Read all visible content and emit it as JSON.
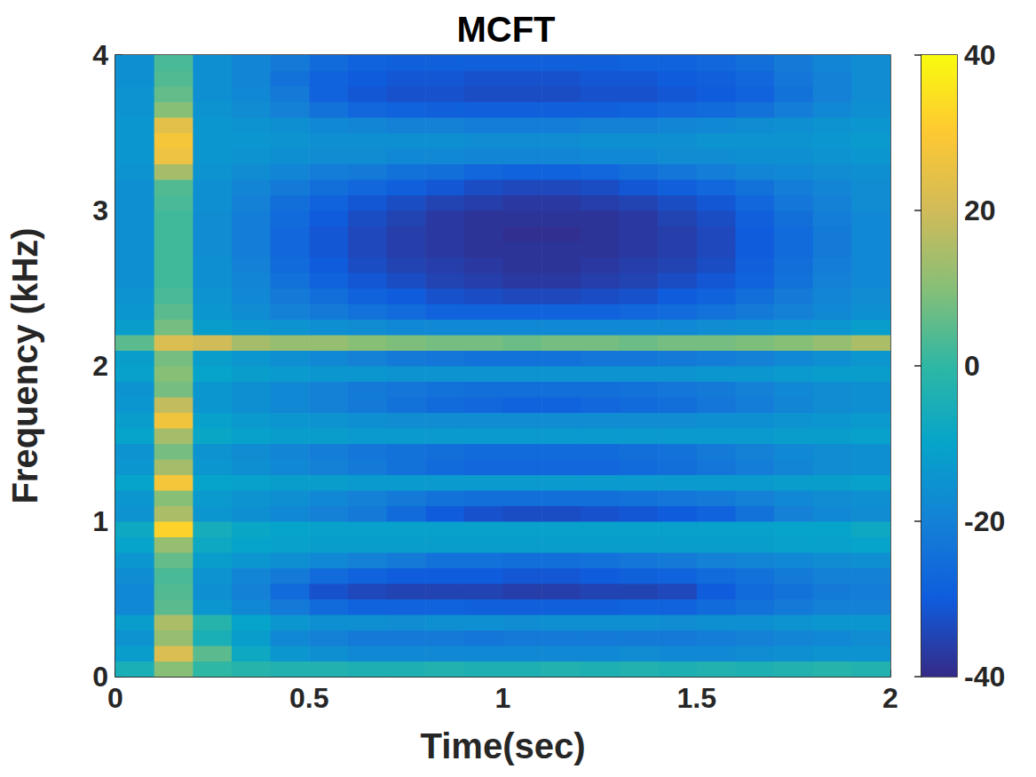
{
  "chart_data": {
    "type": "heatmap",
    "title": "MCFT",
    "x_label": "Time(sec)",
    "y_label": "Frequency (kHz)",
    "xlim": [
      0,
      2
    ],
    "xticks": [
      0,
      0.5,
      1,
      1.5,
      2
    ],
    "ylim": [
      0,
      4
    ],
    "yticks": [
      0,
      1,
      2,
      3,
      4
    ],
    "x": [
      0.05,
      0.15,
      0.25,
      0.35,
      0.45,
      0.55,
      0.65,
      0.75,
      0.85,
      0.95,
      1.05,
      1.15,
      1.25,
      1.35,
      1.45,
      1.55,
      1.65,
      1.75,
      1.85,
      1.95
    ],
    "y": [
      0.05,
      0.15,
      0.25,
      0.35,
      0.45,
      0.55,
      0.65,
      0.75,
      0.85,
      0.95,
      1.05,
      1.15,
      1.25,
      1.35,
      1.45,
      1.55,
      1.65,
      1.75,
      1.85,
      1.95,
      2.05,
      2.15,
      2.25,
      2.35,
      2.45,
      2.55,
      2.65,
      2.75,
      2.85,
      2.95,
      3.05,
      3.15,
      3.25,
      3.35,
      3.45,
      3.55,
      3.65,
      3.75,
      3.85,
      3.95
    ],
    "values": [
      [
        -5,
        10,
        0,
        -2,
        -3,
        -3,
        -4,
        -4,
        -3,
        -4,
        -4,
        -3,
        -4,
        -3,
        -4,
        -3,
        -4,
        -3,
        -2,
        -3
      ],
      [
        -12,
        22,
        5,
        -8,
        -14,
        -16,
        -18,
        -18,
        -18,
        -18,
        -18,
        -18,
        -18,
        -17,
        -18,
        -18,
        -17,
        -16,
        -15,
        -15
      ],
      [
        -15,
        12,
        -5,
        -12,
        -18,
        -20,
        -22,
        -22,
        -22,
        -23,
        -22,
        -22,
        -22,
        -22,
        -22,
        -21,
        -20,
        -19,
        -18,
        -17
      ],
      [
        -12,
        15,
        -2,
        -10,
        -14,
        -16,
        -16,
        -17,
        -16,
        -16,
        -17,
        -16,
        -16,
        -16,
        -17,
        -16,
        -16,
        -15,
        -14,
        -14
      ],
      [
        -18,
        5,
        -14,
        -18,
        -22,
        -26,
        -28,
        -28,
        -28,
        -29,
        -29,
        -29,
        -29,
        -28,
        -28,
        -26,
        -24,
        -22,
        -20,
        -20
      ],
      [
        -18,
        4,
        -16,
        -20,
        -26,
        -32,
        -34,
        -35,
        -35,
        -35,
        -36,
        -36,
        -35,
        -35,
        -34,
        -30,
        -26,
        -24,
        -22,
        -21
      ],
      [
        -17,
        3,
        -15,
        -19,
        -22,
        -26,
        -28,
        -30,
        -30,
        -30,
        -31,
        -31,
        -30,
        -29,
        -28,
        -26,
        -24,
        -22,
        -20,
        -20
      ],
      [
        -14,
        6,
        -12,
        -14,
        -16,
        -18,
        -20,
        -22,
        -24,
        -24,
        -25,
        -25,
        -24,
        -23,
        -22,
        -20,
        -19,
        -18,
        -17,
        -16
      ],
      [
        -10,
        12,
        -8,
        -10,
        -11,
        -12,
        -12,
        -12,
        -12,
        -12,
        -12,
        -12,
        -12,
        -12,
        -12,
        -12,
        -12,
        -11,
        -11,
        -10
      ],
      [
        -8,
        32,
        -6,
        -9,
        -10,
        -11,
        -11,
        -11,
        -11,
        -11,
        -11,
        -11,
        -11,
        -11,
        -11,
        -11,
        -11,
        -10,
        -10,
        -8
      ],
      [
        -15,
        15,
        -14,
        -16,
        -18,
        -20,
        -22,
        -26,
        -30,
        -32,
        -33,
        -33,
        -32,
        -31,
        -30,
        -28,
        -24,
        -20,
        -18,
        -17
      ],
      [
        -14,
        10,
        -13,
        -15,
        -16,
        -18,
        -20,
        -22,
        -24,
        -25,
        -25,
        -25,
        -25,
        -24,
        -23,
        -22,
        -20,
        -18,
        -17,
        -16
      ],
      [
        -10,
        28,
        -10,
        -11,
        -12,
        -12,
        -13,
        -13,
        -13,
        -13,
        -13,
        -13,
        -13,
        -13,
        -13,
        -13,
        -13,
        -12,
        -12,
        -11
      ],
      [
        -14,
        14,
        -14,
        -16,
        -18,
        -20,
        -22,
        -24,
        -26,
        -27,
        -27,
        -27,
        -27,
        -26,
        -25,
        -23,
        -21,
        -19,
        -17,
        -16
      ],
      [
        -15,
        8,
        -15,
        -17,
        -19,
        -21,
        -23,
        -24,
        -25,
        -26,
        -26,
        -26,
        -26,
        -25,
        -24,
        -22,
        -20,
        -18,
        -17,
        -16
      ],
      [
        -10,
        14,
        -9,
        -11,
        -12,
        -12,
        -13,
        -13,
        -13,
        -13,
        -13,
        -13,
        -13,
        -13,
        -13,
        -13,
        -13,
        -12,
        -12,
        -11
      ],
      [
        -12,
        27,
        -11,
        -13,
        -14,
        -15,
        -16,
        -17,
        -17,
        -17,
        -17,
        -17,
        -17,
        -17,
        -17,
        -16,
        -16,
        -15,
        -14,
        -13
      ],
      [
        -14,
        18,
        -14,
        -16,
        -18,
        -20,
        -22,
        -24,
        -26,
        -27,
        -28,
        -28,
        -27,
        -26,
        -25,
        -23,
        -21,
        -19,
        -17,
        -16
      ],
      [
        -15,
        8,
        -14,
        -16,
        -18,
        -20,
        -22,
        -23,
        -24,
        -25,
        -25,
        -25,
        -25,
        -24,
        -23,
        -22,
        -20,
        -18,
        -17,
        -16
      ],
      [
        -11,
        10,
        -10,
        -12,
        -13,
        -14,
        -14,
        -15,
        -15,
        -15,
        -15,
        -15,
        -15,
        -15,
        -15,
        -14,
        -14,
        -13,
        -12,
        -12
      ],
      [
        -12,
        8,
        -12,
        -14,
        -16,
        -18,
        -20,
        -22,
        -23,
        -24,
        -24,
        -24,
        -23,
        -23,
        -22,
        -21,
        -20,
        -18,
        -16,
        -14
      ],
      [
        5,
        22,
        20,
        14,
        12,
        12,
        10,
        9,
        8,
        8,
        7,
        8,
        8,
        7,
        8,
        8,
        9,
        10,
        12,
        15
      ],
      [
        -12,
        8,
        -12,
        -14,
        -15,
        -16,
        -17,
        -18,
        -18,
        -18,
        -18,
        -18,
        -18,
        -18,
        -18,
        -17,
        -16,
        -15,
        -14,
        -12
      ],
      [
        -14,
        5,
        -14,
        -17,
        -20,
        -22,
        -24,
        -26,
        -28,
        -28,
        -28,
        -28,
        -28,
        -27,
        -26,
        -24,
        -22,
        -20,
        -18,
        -16
      ],
      [
        -15,
        3,
        -15,
        -18,
        -22,
        -25,
        -28,
        -30,
        -32,
        -33,
        -34,
        -34,
        -33,
        -32,
        -30,
        -28,
        -25,
        -22,
        -19,
        -17
      ],
      [
        -16,
        2,
        -16,
        -19,
        -24,
        -28,
        -31,
        -33,
        -35,
        -36,
        -37,
        -37,
        -36,
        -35,
        -33,
        -31,
        -28,
        -24,
        -20,
        -18
      ],
      [
        -16,
        2,
        -16,
        -20,
        -26,
        -30,
        -33,
        -35,
        -36,
        -37,
        -38,
        -38,
        -37,
        -36,
        -35,
        -33,
        -29,
        -25,
        -21,
        -18
      ],
      [
        -16,
        2,
        -17,
        -21,
        -27,
        -31,
        -34,
        -36,
        -37,
        -38,
        -38,
        -38,
        -38,
        -37,
        -36,
        -34,
        -30,
        -26,
        -22,
        -18
      ],
      [
        -16,
        2,
        -17,
        -21,
        -27,
        -31,
        -34,
        -36,
        -37,
        -38,
        -39,
        -39,
        -38,
        -37,
        -36,
        -34,
        -30,
        -26,
        -22,
        -18
      ],
      [
        -16,
        2,
        -17,
        -21,
        -26,
        -30,
        -33,
        -35,
        -37,
        -38,
        -38,
        -38,
        -38,
        -37,
        -35,
        -33,
        -29,
        -25,
        -21,
        -18
      ],
      [
        -16,
        3,
        -16,
        -20,
        -25,
        -28,
        -31,
        -33,
        -35,
        -36,
        -37,
        -37,
        -36,
        -35,
        -33,
        -31,
        -27,
        -23,
        -20,
        -17
      ],
      [
        -16,
        4,
        -16,
        -19,
        -22,
        -25,
        -27,
        -29,
        -31,
        -33,
        -34,
        -34,
        -33,
        -31,
        -29,
        -27,
        -24,
        -21,
        -19,
        -17
      ],
      [
        -15,
        14,
        -15,
        -17,
        -19,
        -21,
        -22,
        -24,
        -25,
        -27,
        -28,
        -28,
        -27,
        -25,
        -23,
        -21,
        -19,
        -18,
        -17,
        -16
      ],
      [
        -14,
        26,
        -14,
        -15,
        -16,
        -17,
        -17,
        -18,
        -18,
        -19,
        -19,
        -19,
        -18,
        -18,
        -17,
        -17,
        -16,
        -16,
        -15,
        -14
      ],
      [
        -14,
        28,
        -14,
        -14,
        -15,
        -16,
        -16,
        -16,
        -16,
        -17,
        -17,
        -17,
        -16,
        -16,
        -16,
        -15,
        -15,
        -15,
        -14,
        -13
      ],
      [
        -14,
        24,
        -14,
        -15,
        -16,
        -18,
        -19,
        -20,
        -20,
        -21,
        -21,
        -21,
        -20,
        -20,
        -19,
        -18,
        -17,
        -16,
        -15,
        -14
      ],
      [
        -15,
        10,
        -15,
        -17,
        -20,
        -24,
        -27,
        -28,
        -29,
        -29,
        -29,
        -29,
        -29,
        -28,
        -27,
        -26,
        -24,
        -21,
        -18,
        -16
      ],
      [
        -15,
        6,
        -16,
        -18,
        -22,
        -28,
        -31,
        -32,
        -32,
        -33,
        -33,
        -33,
        -32,
        -32,
        -31,
        -30,
        -28,
        -24,
        -20,
        -17
      ],
      [
        -16,
        4,
        -16,
        -19,
        -24,
        -28,
        -30,
        -31,
        -31,
        -32,
        -32,
        -32,
        -31,
        -31,
        -30,
        -29,
        -27,
        -23,
        -20,
        -17
      ],
      [
        -16,
        3,
        -16,
        -19,
        -22,
        -26,
        -28,
        -29,
        -29,
        -29,
        -29,
        -29,
        -29,
        -28,
        -28,
        -27,
        -25,
        -22,
        -19,
        -17
      ]
    ],
    "colorbar": {
      "range": [
        -40,
        40
      ],
      "ticks": [
        -40,
        -20,
        0,
        20,
        40
      ]
    }
  }
}
